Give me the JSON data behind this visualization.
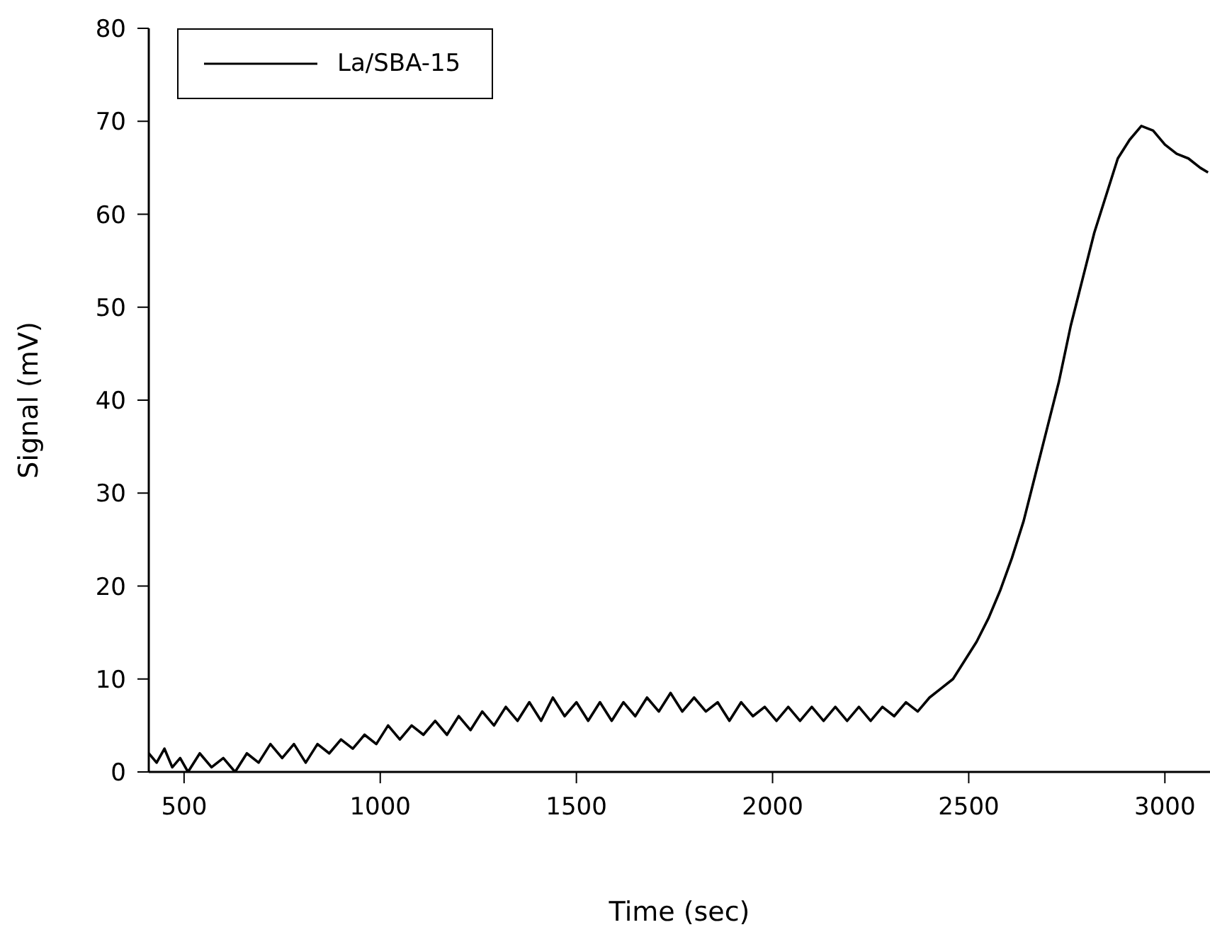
{
  "chart_data": {
    "type": "line",
    "xlabel": "Time (sec)",
    "ylabel": "Signal (mV)",
    "xlim": [
      410,
      3115
    ],
    "xticks": [
      500,
      1000,
      1500,
      2000,
      2500,
      3000
    ],
    "ylim": [
      0,
      80
    ],
    "yticks": [
      0,
      10,
      20,
      30,
      40,
      50,
      60,
      70,
      80
    ],
    "legend": "top left",
    "marker": "none",
    "line_style": "solid",
    "series": [
      {
        "name": "La/SBA-15",
        "color": "#000000",
        "x": [
          410,
          430,
          450,
          470,
          490,
          510,
          540,
          570,
          600,
          630,
          660,
          690,
          720,
          750,
          780,
          810,
          840,
          870,
          900,
          930,
          960,
          990,
          1020,
          1050,
          1080,
          1110,
          1140,
          1170,
          1200,
          1230,
          1260,
          1290,
          1320,
          1350,
          1380,
          1410,
          1440,
          1470,
          1500,
          1530,
          1560,
          1590,
          1620,
          1650,
          1680,
          1710,
          1740,
          1770,
          1800,
          1830,
          1860,
          1890,
          1920,
          1950,
          1980,
          2010,
          2040,
          2070,
          2100,
          2130,
          2160,
          2190,
          2220,
          2250,
          2280,
          2310,
          2340,
          2370,
          2400,
          2430,
          2460,
          2490,
          2520,
          2550,
          2580,
          2610,
          2640,
          2670,
          2700,
          2730,
          2760,
          2790,
          2820,
          2850,
          2880,
          2910,
          2940,
          2970,
          3000,
          3030,
          3060,
          3090,
          3110
        ],
        "values": [
          2,
          1,
          2.5,
          0.5,
          1.5,
          0,
          2,
          0.5,
          1.5,
          0,
          2,
          1,
          3,
          1.5,
          3,
          1,
          3,
          2,
          3.5,
          2.5,
          4,
          3,
          5,
          3.5,
          5,
          4,
          5.5,
          4,
          6,
          4.5,
          6.5,
          5,
          7,
          5.5,
          7.5,
          5.5,
          8,
          6,
          7.5,
          5.5,
          7.5,
          5.5,
          7.5,
          6,
          8,
          6.5,
          8.5,
          6.5,
          8,
          6.5,
          7.5,
          5.5,
          7.5,
          6,
          7,
          5.5,
          7,
          5.5,
          7,
          5.5,
          7,
          5.5,
          7,
          5.5,
          7,
          6,
          7.5,
          6.5,
          8,
          9,
          10,
          12,
          14,
          16.5,
          19.5,
          23,
          27,
          32,
          37,
          42,
          48,
          53,
          58,
          62,
          66,
          68,
          69.5,
          69,
          67.5,
          66.5,
          66,
          65,
          64.5
        ]
      }
    ]
  }
}
